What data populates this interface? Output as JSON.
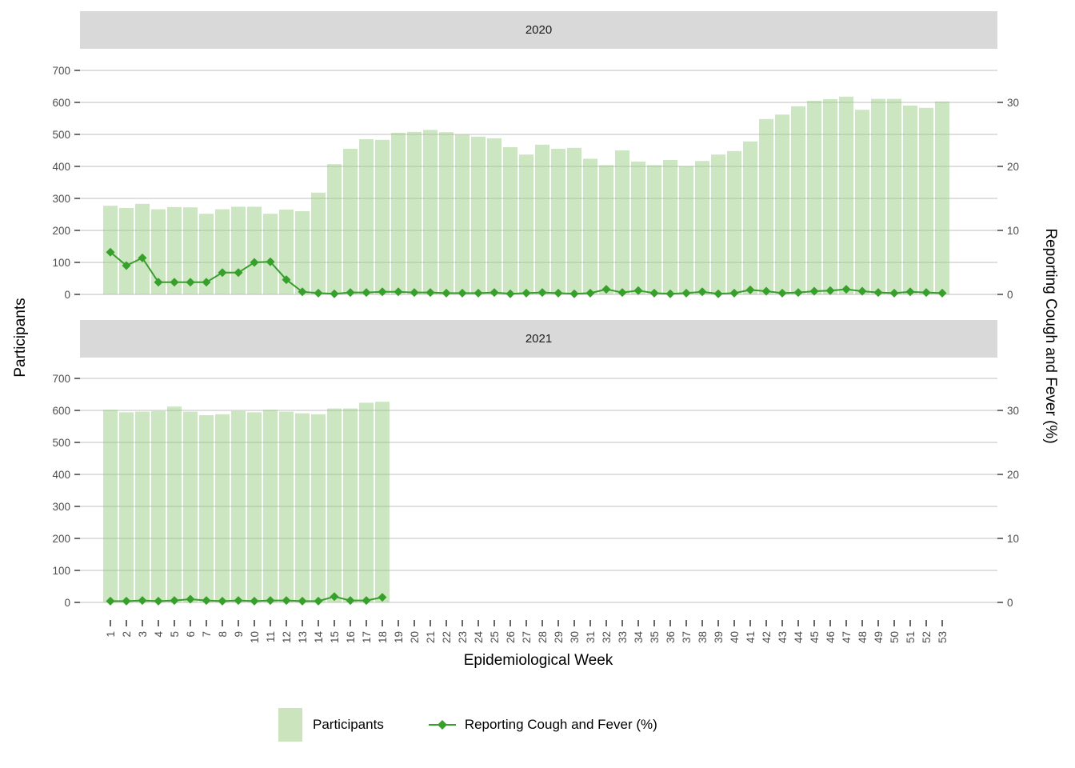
{
  "figure": {
    "background": "#ffffff",
    "strip_fill": "#d9d9d9",
    "strip_text_color": "#1a1a1a",
    "grid_color": "#cccccc",
    "bar_fill": "#90c777",
    "bar_opacity": 0.45,
    "bar_fill_flat": "#cbe4bd",
    "line_color": "#379f2b",
    "axis_text_color": "#4d4d4d",
    "axis_title_color": "#000000",
    "tick_color": "#333333"
  },
  "axes": {
    "y_left": {
      "title": "Participants",
      "ticks": [
        0,
        100,
        200,
        300,
        400,
        500,
        600,
        700
      ]
    },
    "y_right": {
      "title": "Reporting Cough and Fever (%)",
      "ticks": [
        0,
        10,
        20,
        30
      ]
    },
    "x": {
      "title": "Epidemiological Week",
      "ticks": [
        1,
        2,
        3,
        4,
        5,
        6,
        7,
        8,
        9,
        10,
        11,
        12,
        13,
        14,
        15,
        16,
        17,
        18,
        19,
        20,
        21,
        22,
        23,
        24,
        25,
        26,
        27,
        28,
        29,
        30,
        31,
        32,
        33,
        34,
        35,
        36,
        37,
        38,
        39,
        40,
        41,
        42,
        43,
        44,
        45,
        46,
        47,
        48,
        49,
        50,
        51,
        52,
        53
      ]
    }
  },
  "legend": {
    "items": [
      {
        "label": "Participants",
        "type": "fill-swatch"
      },
      {
        "label": "Reporting Cough and Fever (%)",
        "type": "line-point"
      }
    ]
  },
  "chart_data": {
    "type": "bar+line dual-axis, faceted by year (stacked facets)",
    "title": "",
    "xlabel": "Epidemiological Week",
    "ylabel_left": "Participants",
    "ylabel_right": "Reporting Cough and Fever (%)",
    "ylim_left": [
      0,
      700
    ],
    "ylim_right": [
      0,
      35
    ],
    "grid": "horizontal major gridlines only",
    "legend_position": "bottom",
    "facets": [
      {
        "label": "2020",
        "weeks": [
          1,
          2,
          3,
          4,
          5,
          6,
          7,
          8,
          9,
          10,
          11,
          12,
          13,
          14,
          15,
          16,
          17,
          18,
          19,
          20,
          21,
          22,
          23,
          24,
          25,
          26,
          27,
          28,
          29,
          30,
          31,
          32,
          33,
          34,
          35,
          36,
          37,
          38,
          39,
          40,
          41,
          42,
          43,
          44,
          45,
          46,
          47,
          48,
          49,
          50,
          51,
          52,
          53
        ],
        "participants": [
          277,
          270,
          283,
          266,
          273,
          272,
          252,
          266,
          274,
          274,
          252,
          265,
          260,
          318,
          407,
          455,
          485,
          483,
          505,
          508,
          514,
          507,
          499,
          493,
          488,
          460,
          437,
          468,
          455,
          458,
          424,
          404,
          450,
          415,
          404,
          420,
          401,
          417,
          437,
          448,
          478,
          548,
          562,
          588,
          605,
          610,
          618,
          577,
          611,
          611,
          590,
          583,
          603
        ],
        "pct_cough_fever": [
          6.6,
          4.5,
          5.7,
          1.9,
          1.9,
          1.9,
          1.9,
          3.4,
          3.4,
          5.0,
          5.1,
          2.3,
          0.4,
          0.2,
          0.1,
          0.3,
          0.3,
          0.4,
          0.4,
          0.3,
          0.3,
          0.2,
          0.2,
          0.2,
          0.3,
          0.1,
          0.2,
          0.3,
          0.2,
          0.1,
          0.2,
          0.8,
          0.3,
          0.6,
          0.2,
          0.1,
          0.2,
          0.4,
          0.1,
          0.2,
          0.7,
          0.5,
          0.2,
          0.3,
          0.5,
          0.6,
          0.8,
          0.5,
          0.3,
          0.2,
          0.4,
          0.3,
          0.2
        ]
      },
      {
        "label": "2021",
        "weeks": [
          1,
          2,
          3,
          4,
          5,
          6,
          7,
          8,
          9,
          10,
          11,
          12,
          13,
          14,
          15,
          16,
          17,
          18
        ],
        "participants": [
          602,
          594,
          596,
          598,
          612,
          596,
          585,
          588,
          598,
          594,
          602,
          596,
          591,
          588,
          606,
          606,
          624,
          627
        ],
        "pct_cough_fever": [
          0.2,
          0.2,
          0.3,
          0.2,
          0.3,
          0.5,
          0.3,
          0.2,
          0.3,
          0.2,
          0.3,
          0.3,
          0.2,
          0.2,
          0.9,
          0.3,
          0.3,
          0.8
        ]
      }
    ]
  }
}
